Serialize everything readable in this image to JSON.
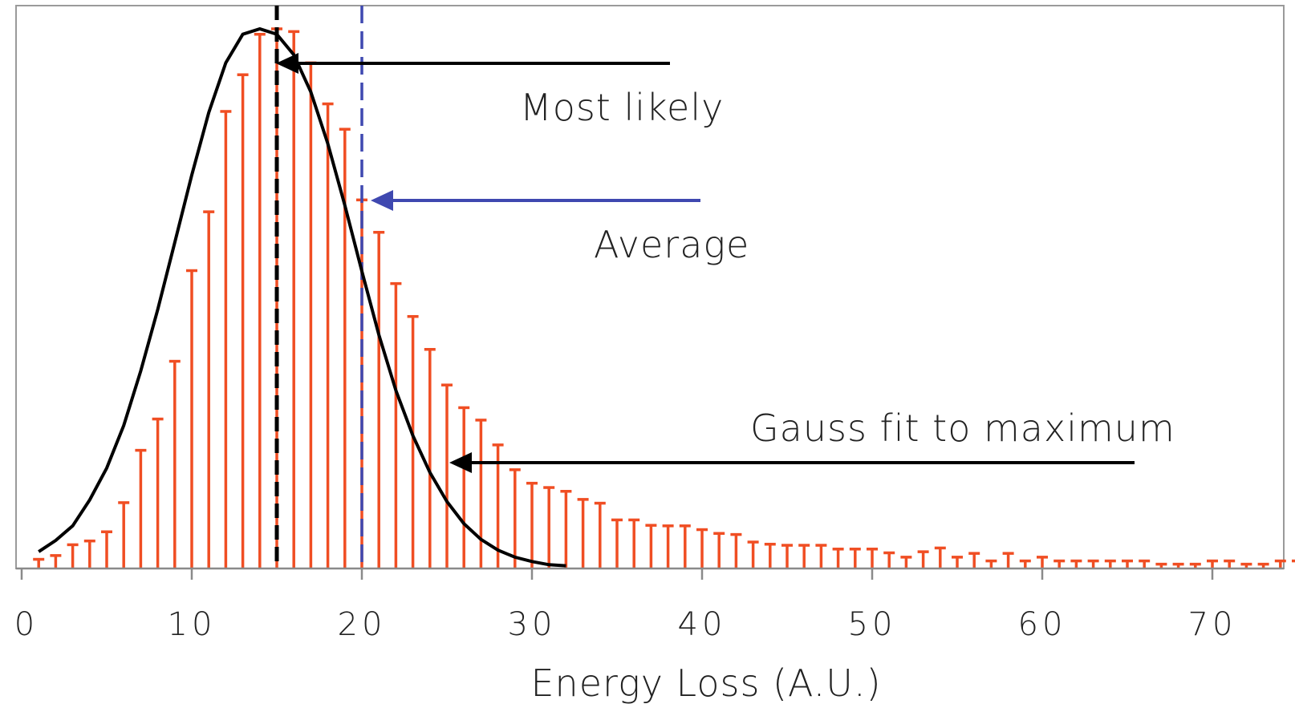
{
  "chart_data": {
    "type": "bar",
    "xlabel": "Energy Loss (A.U.)",
    "ylabel": "",
    "title": "",
    "xlim": [
      0,
      75
    ],
    "ylim": [
      0,
      1.0
    ],
    "grid": false,
    "y_ticks_visible": false,
    "x_ticks": [
      0,
      10,
      20,
      30,
      40,
      50,
      60,
      70
    ],
    "x_tick_labels": [
      "0",
      "10",
      "20",
      "30",
      "40",
      "50",
      "60",
      "70"
    ],
    "series": [
      {
        "style": "stem-with-cap",
        "color": "#f04e23",
        "x": [
          1,
          2,
          3,
          4,
          5,
          6,
          7,
          8,
          9,
          10,
          11,
          12,
          13,
          14,
          15,
          16,
          17,
          18,
          19,
          20,
          21,
          22,
          23,
          24,
          25,
          26,
          27,
          28,
          29,
          30,
          31,
          32,
          33,
          34,
          35,
          36,
          37,
          38,
          39,
          40,
          41,
          42,
          43,
          44,
          45,
          46,
          47,
          48,
          49,
          50,
          51,
          52,
          53,
          54,
          55,
          56,
          57,
          58,
          59,
          60,
          61,
          62,
          63,
          64,
          65,
          66,
          67,
          68,
          69,
          70,
          71,
          72,
          73,
          74,
          75
        ],
        "values": [
          0.017,
          0.024,
          0.044,
          0.051,
          0.068,
          0.122,
          0.219,
          0.277,
          0.384,
          0.552,
          0.661,
          0.847,
          0.915,
          0.99,
          1.0,
          0.995,
          0.937,
          0.861,
          0.814,
          0.683,
          0.623,
          0.528,
          0.467,
          0.406,
          0.34,
          0.298,
          0.275,
          0.229,
          0.183,
          0.158,
          0.15,
          0.143,
          0.128,
          0.121,
          0.09,
          0.09,
          0.08,
          0.079,
          0.079,
          0.072,
          0.065,
          0.063,
          0.049,
          0.045,
          0.043,
          0.043,
          0.043,
          0.036,
          0.036,
          0.036,
          0.029,
          0.021,
          0.031,
          0.038,
          0.021,
          0.028,
          0.014,
          0.028,
          0.014,
          0.021,
          0.014,
          0.014,
          0.014,
          0.014,
          0.014,
          0.014,
          0.008,
          0.008,
          0.008,
          0.014,
          0.014,
          0.008,
          0.008,
          0.014,
          0.014
        ]
      },
      {
        "style": "line",
        "color": "#000000",
        "x": [
          1,
          2,
          3,
          4,
          5,
          6,
          7,
          8,
          9,
          10,
          11,
          12,
          13,
          14,
          15,
          16,
          17,
          18,
          19,
          20,
          21,
          22,
          23,
          24,
          25,
          26,
          27,
          28,
          29,
          30,
          31,
          32
        ],
        "values": [
          0.031,
          0.052,
          0.079,
          0.127,
          0.186,
          0.265,
          0.366,
          0.48,
          0.604,
          0.729,
          0.845,
          0.937,
          0.99,
          1.0,
          0.99,
          0.952,
          0.883,
          0.787,
          0.673,
          0.551,
          0.433,
          0.33,
          0.246,
          0.178,
          0.124,
          0.083,
          0.054,
          0.034,
          0.021,
          0.013,
          0.007,
          0.005
        ]
      }
    ],
    "reference_lines": [
      {
        "x": 15,
        "color": "#000000",
        "style": "dashed"
      },
      {
        "x": 20,
        "color": "#3f48b0",
        "style": "dashed"
      }
    ],
    "annotations": [
      {
        "text": "Most likely",
        "arrow_color": "#000000",
        "text_color": "#222222"
      },
      {
        "text": "Average",
        "arrow_color": "#3f48b0",
        "text_color": "#222222"
      },
      {
        "text": "Gauss fit to maximum",
        "arrow_color": "#000000",
        "text_color": "#222222"
      }
    ]
  }
}
